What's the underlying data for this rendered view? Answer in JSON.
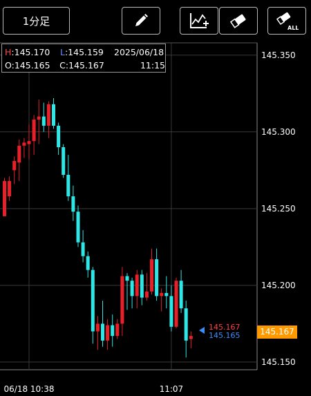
{
  "toolbar": {
    "timeframe_label": "1分足",
    "pencil_icon": "pencil-icon",
    "indicator_icon": "line-chart-add-icon",
    "eraser_icon": "eraser-icon",
    "eraser_all_icon": "eraser-all-icon",
    "eraser_all_text": "ALL"
  },
  "info": {
    "high_label": "H",
    "high_value": ":145.170",
    "low_label": "L",
    "low_value": ":145.159",
    "open_label": "O",
    "open_value": ":145.165",
    "close_label": "C",
    "close_value": ":145.167",
    "date": "2025/06/18",
    "time": "11:15"
  },
  "price_tags": {
    "ask": "145.167",
    "bid": "145.165",
    "current": "145.167"
  },
  "colors": {
    "up": "#e8202a",
    "down": "#2ee6e6",
    "grid": "#3a3a3a",
    "current_price_bg": "#ff9900"
  },
  "chart_data": {
    "type": "candlestick",
    "ylim": [
      145.145,
      145.358
    ],
    "y_ticks": [
      "145.350",
      "145.300",
      "145.250",
      "145.200",
      "145.150"
    ],
    "y_tick_values": [
      145.35,
      145.3,
      145.25,
      145.2,
      145.15
    ],
    "x_tick_labels": [
      "06/18 10:38",
      "11:07"
    ],
    "x_tick_indices": [
      5,
      34
    ],
    "grid": true,
    "candles": [
      {
        "o": 145.245,
        "h": 145.27,
        "l": 145.245,
        "c": 145.268
      },
      {
        "o": 145.258,
        "h": 145.271,
        "l": 145.255,
        "c": 145.268
      },
      {
        "o": 145.275,
        "h": 145.284,
        "l": 145.266,
        "c": 145.281
      },
      {
        "o": 145.28,
        "h": 145.295,
        "l": 145.268,
        "c": 145.291
      },
      {
        "o": 145.291,
        "h": 145.296,
        "l": 145.283,
        "c": 145.293
      },
      {
        "o": 145.292,
        "h": 145.305,
        "l": 145.282,
        "c": 145.294
      },
      {
        "o": 145.294,
        "h": 145.311,
        "l": 145.285,
        "c": 145.308
      },
      {
        "o": 145.308,
        "h": 145.321,
        "l": 145.292,
        "c": 145.31
      },
      {
        "o": 145.31,
        "h": 145.319,
        "l": 145.3,
        "c": 145.304
      },
      {
        "o": 145.304,
        "h": 145.32,
        "l": 145.296,
        "c": 145.318
      },
      {
        "o": 145.318,
        "h": 145.322,
        "l": 145.302,
        "c": 145.304
      },
      {
        "o": 145.304,
        "h": 145.306,
        "l": 145.285,
        "c": 145.29
      },
      {
        "o": 145.29,
        "h": 145.292,
        "l": 145.27,
        "c": 145.272
      },
      {
        "o": 145.272,
        "h": 145.285,
        "l": 145.255,
        "c": 145.258
      },
      {
        "o": 145.258,
        "h": 145.265,
        "l": 145.242,
        "c": 145.248
      },
      {
        "o": 145.248,
        "h": 145.252,
        "l": 145.225,
        "c": 145.228
      },
      {
        "o": 145.228,
        "h": 145.236,
        "l": 145.215,
        "c": 145.219
      },
      {
        "o": 145.219,
        "h": 145.222,
        "l": 145.205,
        "c": 145.21
      },
      {
        "o": 145.21,
        "h": 145.212,
        "l": 145.162,
        "c": 145.17
      },
      {
        "o": 145.17,
        "h": 145.18,
        "l": 145.158,
        "c": 145.175
      },
      {
        "o": 145.175,
        "h": 145.19,
        "l": 145.16,
        "c": 145.164
      },
      {
        "o": 145.164,
        "h": 145.178,
        "l": 145.158,
        "c": 145.174
      },
      {
        "o": 145.174,
        "h": 145.181,
        "l": 145.16,
        "c": 145.167
      },
      {
        "o": 145.167,
        "h": 145.178,
        "l": 145.165,
        "c": 145.175
      },
      {
        "o": 145.175,
        "h": 145.212,
        "l": 145.167,
        "c": 145.206
      },
      {
        "o": 145.206,
        "h": 145.208,
        "l": 145.184,
        "c": 145.203
      },
      {
        "o": 145.203,
        "h": 145.205,
        "l": 145.185,
        "c": 145.193
      },
      {
        "o": 145.193,
        "h": 145.21,
        "l": 145.185,
        "c": 145.207
      },
      {
        "o": 145.207,
        "h": 145.21,
        "l": 145.187,
        "c": 145.192
      },
      {
        "o": 145.192,
        "h": 145.208,
        "l": 145.19,
        "c": 145.196
      },
      {
        "o": 145.196,
        "h": 145.224,
        "l": 145.194,
        "c": 145.217
      },
      {
        "o": 145.217,
        "h": 145.224,
        "l": 145.19,
        "c": 145.193
      },
      {
        "o": 145.193,
        "h": 145.198,
        "l": 145.183,
        "c": 145.195
      },
      {
        "o": 145.195,
        "h": 145.206,
        "l": 145.185,
        "c": 145.193
      },
      {
        "o": 145.193,
        "h": 145.2,
        "l": 145.17,
        "c": 145.173
      },
      {
        "o": 145.173,
        "h": 145.205,
        "l": 145.172,
        "c": 145.203
      },
      {
        "o": 145.203,
        "h": 145.21,
        "l": 145.182,
        "c": 145.185
      },
      {
        "o": 145.185,
        "h": 145.19,
        "l": 145.153,
        "c": 145.164
      },
      {
        "o": 145.165,
        "h": 145.17,
        "l": 145.159,
        "c": 145.167
      }
    ]
  }
}
